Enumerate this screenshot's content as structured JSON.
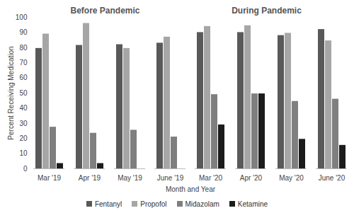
{
  "chart_data": {
    "type": "bar",
    "categories": [
      "Mar '19",
      "Apr '19",
      "May '19",
      "June '19",
      "Mar '20",
      "Apr '20",
      "May '20",
      "June '20"
    ],
    "series": [
      {
        "name": "Fentanyl",
        "color": "#595959",
        "values": [
          79.5,
          81.5,
          82,
          83,
          90,
          90,
          88,
          92
        ]
      },
      {
        "name": "Propofol",
        "color": "#a6a6a6",
        "values": [
          89,
          96,
          79.5,
          87,
          94,
          94.5,
          89.5,
          84.5
        ]
      },
      {
        "name": "Midazolam",
        "color": "#7f7f7f",
        "values": [
          27.5,
          23.5,
          25.5,
          21,
          49,
          49.5,
          44.5,
          46
        ]
      },
      {
        "name": "Ketamine",
        "color": "#1c1c1c",
        "values": [
          3.5,
          3.5,
          0,
          0,
          29,
          49.5,
          19.5,
          15.5
        ]
      }
    ],
    "xlabel": "Month and Year",
    "ylabel": "Percent Receiving Medication",
    "annotations": [
      "Before Pandemic",
      "During Pandemic"
    ],
    "ylim": [
      0,
      100
    ],
    "yticks": [
      0,
      10,
      20,
      30,
      40,
      50,
      60,
      70,
      80,
      90,
      100
    ],
    "grid": false,
    "legend": "bottom"
  }
}
